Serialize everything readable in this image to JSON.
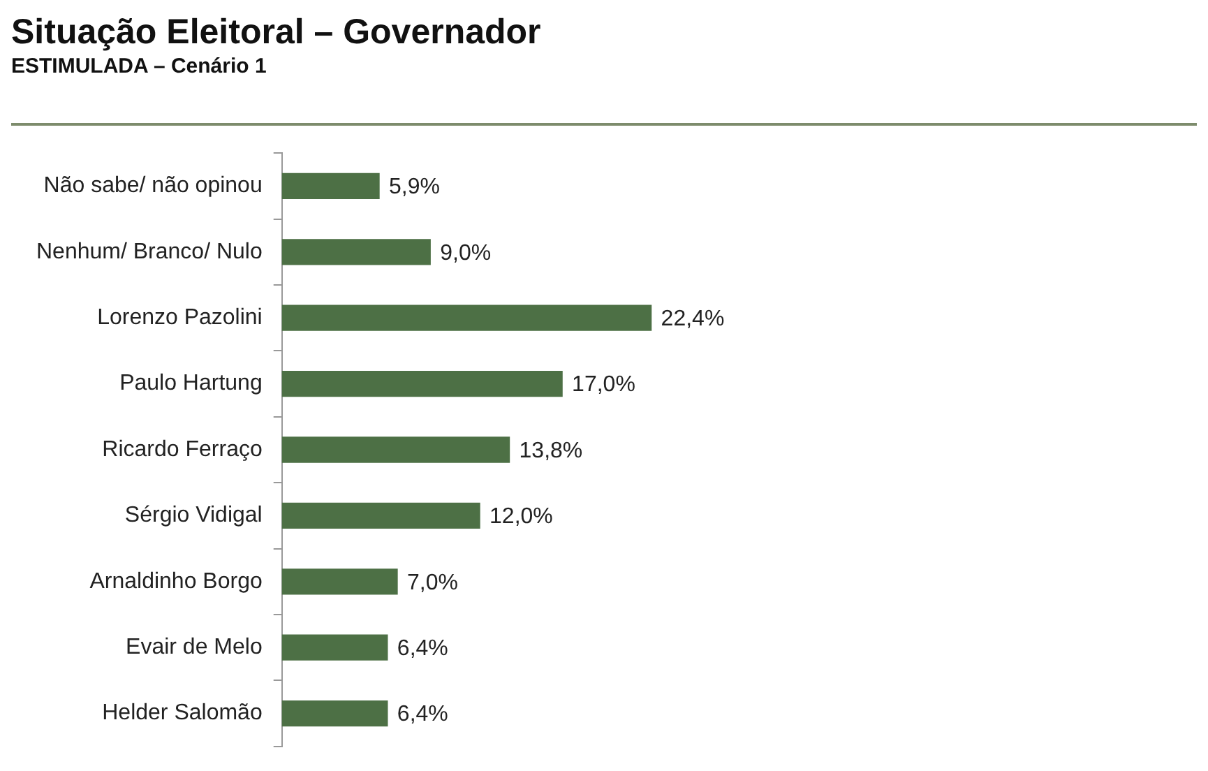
{
  "chart_data": {
    "type": "bar",
    "orientation": "horizontal",
    "title": "Situação Eleitoral – Governador",
    "subtitle": "ESTIMULADA – Cenário 1",
    "categories": [
      "Não sabe/ não opinou",
      "Nenhum/ Branco/ Nulo",
      "Lorenzo Pazolini",
      "Paulo Hartung",
      "Ricardo Ferraço",
      "Sérgio Vidigal",
      "Arnaldinho Borgo",
      "Evair de Melo",
      "Helder Salomão"
    ],
    "values": [
      5.9,
      9.0,
      22.4,
      17.0,
      13.8,
      12.0,
      7.0,
      6.4,
      6.4
    ],
    "value_labels": [
      "5,9%",
      "9,0%",
      "22,4%",
      "17,0%",
      "13,8%",
      "12,0%",
      "7,0%",
      "6,4%",
      "6,4%"
    ],
    "color": "#4d7045",
    "tick_labels": "y",
    "grid": false,
    "legend": false
  }
}
